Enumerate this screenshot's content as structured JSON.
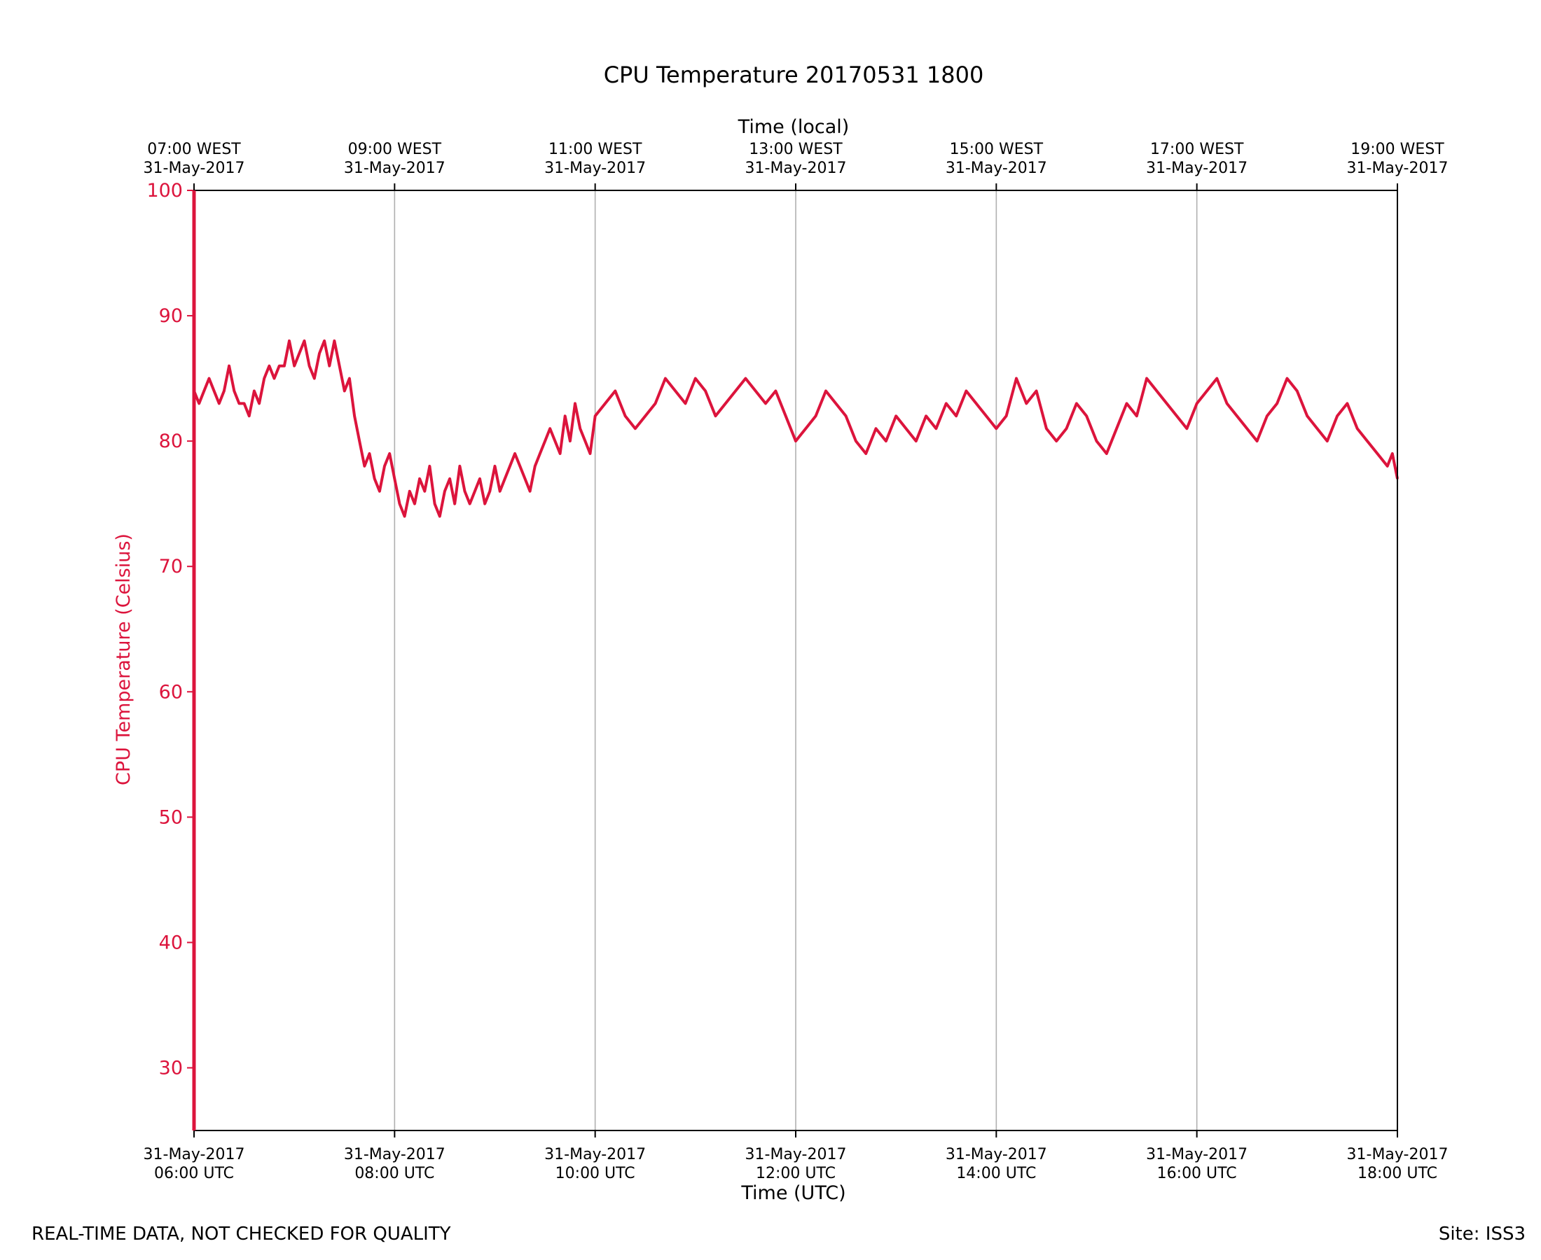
{
  "chart_data": {
    "type": "line",
    "title": "CPU Temperature 20170531 1800",
    "xlabel": "Time (UTC)",
    "xlabel_top": "Time (local)",
    "ylabel": "CPU Temperature (Celsius)",
    "ylim": [
      25,
      100
    ],
    "y_ticks": [
      30,
      40,
      50,
      60,
      70,
      80,
      90,
      100
    ],
    "x_range_hours_utc": [
      6,
      18
    ],
    "x_ticks_hours_utc": [
      6,
      8,
      10,
      12,
      14,
      16,
      18
    ],
    "x_tick_labels_bottom": [
      [
        "31-May-2017",
        "06:00 UTC"
      ],
      [
        "31-May-2017",
        "08:00 UTC"
      ],
      [
        "31-May-2017",
        "10:00 UTC"
      ],
      [
        "31-May-2017",
        "12:00 UTC"
      ],
      [
        "31-May-2017",
        "14:00 UTC"
      ],
      [
        "31-May-2017",
        "16:00 UTC"
      ],
      [
        "31-May-2017",
        "18:00 UTC"
      ]
    ],
    "x_tick_labels_top": [
      [
        "07:00 WEST",
        "31-May-2017"
      ],
      [
        "09:00 WEST",
        "31-May-2017"
      ],
      [
        "11:00 WEST",
        "31-May-2017"
      ],
      [
        "13:00 WEST",
        "31-May-2017"
      ],
      [
        "15:00 WEST",
        "31-May-2017"
      ],
      [
        "17:00 WEST",
        "31-May-2017"
      ],
      [
        "19:00 WEST",
        "31-May-2017"
      ]
    ],
    "grid": "vertical",
    "series": [
      {
        "name": "CPU Temperature",
        "color": "#dc143c",
        "x_hours_utc": [
          6.0,
          6.05,
          6.1,
          6.15,
          6.2,
          6.25,
          6.3,
          6.35,
          6.4,
          6.45,
          6.5,
          6.55,
          6.6,
          6.65,
          6.7,
          6.75,
          6.8,
          6.85,
          6.9,
          6.95,
          7.0,
          7.05,
          7.1,
          7.15,
          7.2,
          7.25,
          7.3,
          7.35,
          7.4,
          7.45,
          7.5,
          7.55,
          7.6,
          7.65,
          7.7,
          7.75,
          7.8,
          7.85,
          7.9,
          7.95,
          8.0,
          8.05,
          8.1,
          8.15,
          8.2,
          8.25,
          8.3,
          8.35,
          8.4,
          8.45,
          8.5,
          8.55,
          8.6,
          8.65,
          8.7,
          8.75,
          8.8,
          8.85,
          8.9,
          8.95,
          9.0,
          9.05,
          9.1,
          9.15,
          9.2,
          9.25,
          9.3,
          9.35,
          9.4,
          9.45,
          9.5,
          9.55,
          9.6,
          9.65,
          9.7,
          9.75,
          9.8,
          9.85,
          9.9,
          9.95,
          10.0,
          10.1,
          10.2,
          10.3,
          10.4,
          10.5,
          10.6,
          10.7,
          10.8,
          10.9,
          11.0,
          11.1,
          11.2,
          11.3,
          11.4,
          11.5,
          11.6,
          11.7,
          11.8,
          11.9,
          12.0,
          12.1,
          12.2,
          12.3,
          12.4,
          12.5,
          12.6,
          12.7,
          12.8,
          12.9,
          13.0,
          13.1,
          13.2,
          13.3,
          13.4,
          13.5,
          13.6,
          13.7,
          13.8,
          13.9,
          14.0,
          14.1,
          14.2,
          14.3,
          14.4,
          14.5,
          14.6,
          14.7,
          14.8,
          14.9,
          15.0,
          15.1,
          15.2,
          15.3,
          15.4,
          15.5,
          15.6,
          15.7,
          15.8,
          15.9,
          16.0,
          16.1,
          16.2,
          16.3,
          16.4,
          16.5,
          16.6,
          16.7,
          16.8,
          16.9,
          17.0,
          17.1,
          17.2,
          17.3,
          17.4,
          17.5,
          17.6,
          17.7,
          17.8,
          17.9,
          17.95,
          18.0
        ],
        "values": [
          84,
          83,
          84,
          85,
          84,
          83,
          84,
          86,
          84,
          83,
          83,
          82,
          84,
          83,
          85,
          86,
          85,
          86,
          86,
          88,
          86,
          87,
          88,
          86,
          85,
          87,
          88,
          86,
          88,
          86,
          84,
          85,
          82,
          80,
          78,
          79,
          77,
          76,
          78,
          79,
          77,
          75,
          74,
          76,
          75,
          77,
          76,
          78,
          75,
          74,
          76,
          77,
          75,
          78,
          76,
          75,
          76,
          77,
          75,
          76,
          78,
          76,
          77,
          78,
          79,
          78,
          77,
          76,
          78,
          79,
          80,
          81,
          80,
          79,
          82,
          80,
          83,
          81,
          80,
          79,
          82,
          83,
          84,
          82,
          81,
          82,
          83,
          85,
          84,
          83,
          85,
          84,
          82,
          83,
          84,
          85,
          84,
          83,
          84,
          82,
          80,
          81,
          82,
          84,
          83,
          82,
          80,
          79,
          81,
          80,
          82,
          81,
          80,
          82,
          81,
          83,
          82,
          84,
          83,
          82,
          81,
          82,
          85,
          83,
          84,
          81,
          80,
          81,
          83,
          82,
          80,
          79,
          81,
          83,
          82,
          85,
          84,
          83,
          82,
          81,
          83,
          84,
          85,
          83,
          82,
          81,
          80,
          82,
          83,
          85,
          84,
          82,
          81,
          80,
          82,
          83,
          81,
          80,
          79,
          78,
          79,
          77
        ]
      }
    ]
  },
  "footer": {
    "left": "REAL-TIME DATA, NOT CHECKED FOR QUALITY",
    "right": "Site: ISS3"
  }
}
